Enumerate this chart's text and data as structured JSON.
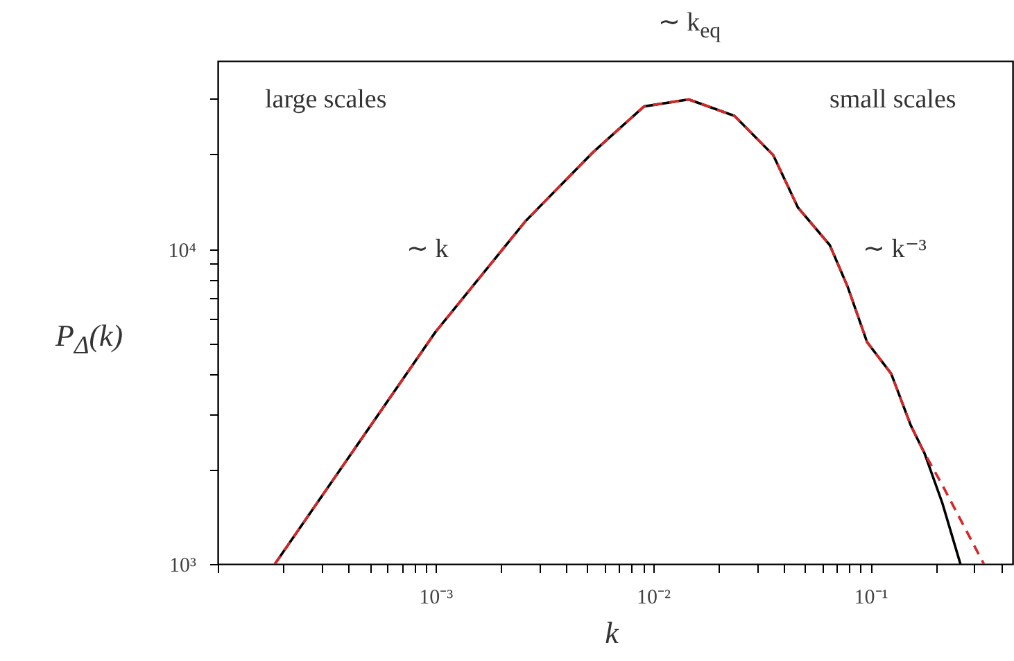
{
  "chart_data": {
    "type": "line",
    "xlabel": "k",
    "ylabel": "P$_{Δ}$(k)",
    "log": "xy",
    "grid": false,
    "xlim": [
      0.0001,
      0.45
    ],
    "ylim": [
      1000,
      39600
    ],
    "xticks": [
      {
        "value": 0.0001,
        "label": null
      },
      {
        "value": 0.0002,
        "label": null
      },
      {
        "value": 0.0003,
        "label": null
      },
      {
        "value": 0.0004,
        "label": null
      },
      {
        "value": 0.0005,
        "label": null
      },
      {
        "value": 0.0006,
        "label": null
      },
      {
        "value": 0.0007,
        "label": null
      },
      {
        "value": 0.0008,
        "label": null
      },
      {
        "value": 0.0009,
        "label": null
      },
      {
        "value": 0.001,
        "label": "10⁻³"
      },
      {
        "value": 0.002,
        "label": null
      },
      {
        "value": 0.003,
        "label": null
      },
      {
        "value": 0.004,
        "label": null
      },
      {
        "value": 0.005,
        "label": null
      },
      {
        "value": 0.006,
        "label": null
      },
      {
        "value": 0.007,
        "label": null
      },
      {
        "value": 0.008,
        "label": null
      },
      {
        "value": 0.009,
        "label": null
      },
      {
        "value": 0.01,
        "label": "10⁻²"
      },
      {
        "value": 0.02,
        "label": null
      },
      {
        "value": 0.03,
        "label": null
      },
      {
        "value": 0.04,
        "label": null
      },
      {
        "value": 0.05,
        "label": null
      },
      {
        "value": 0.06,
        "label": null
      },
      {
        "value": 0.07,
        "label": null
      },
      {
        "value": 0.08,
        "label": null
      },
      {
        "value": 0.09,
        "label": null
      },
      {
        "value": 0.1,
        "label": "10⁻¹"
      },
      {
        "value": 0.2,
        "label": null
      },
      {
        "value": 0.3,
        "label": null
      },
      {
        "value": 0.4,
        "label": null
      }
    ],
    "yticks": [
      {
        "value": 1000,
        "label": "10³"
      },
      {
        "value": 2000,
        "label": null
      },
      {
        "value": 3000,
        "label": null
      },
      {
        "value": 4000,
        "label": null
      },
      {
        "value": 5000,
        "label": null
      },
      {
        "value": 6000,
        "label": null
      },
      {
        "value": 7000,
        "label": null
      },
      {
        "value": 8000,
        "label": null
      },
      {
        "value": 9000,
        "label": null
      },
      {
        "value": 10000,
        "label": "10⁴"
      },
      {
        "value": 20000,
        "label": null
      },
      {
        "value": 30000,
        "label": null
      }
    ],
    "annotations": [
      "large scales",
      "small scales",
      "∼ k",
      "∼ k⁻³",
      "∼ k$_{eq}$"
    ],
    "series": [
      {
        "color": "#000000",
        "line_style": "solid",
        "x": [
          0.000183,
          0.001,
          0.00259,
          0.0053,
          0.0091,
          0.0146,
          0.0237,
          0.0357,
          0.0464,
          0.065,
          0.0785,
          0.0964,
          0.1245,
          0.153,
          0.177,
          0.214,
          0.259
        ],
        "values": [
          1000,
          5450,
          12250,
          20300,
          28400,
          29900,
          26500,
          19900,
          13560,
          10300,
          7600,
          5070,
          4020,
          2760,
          2250,
          1560,
          1000
        ]
      },
      {
        "color": "#d62728",
        "line_style": "dashed",
        "x": [
          0.000183,
          0.001,
          0.00259,
          0.0053,
          0.0091,
          0.0146,
          0.0237,
          0.0357,
          0.0464,
          0.065,
          0.0785,
          0.0964,
          0.1245,
          0.153,
          0.177,
          0.214,
          0.332
        ],
        "values": [
          1000,
          5450,
          12250,
          20300,
          28400,
          29900,
          26500,
          19900,
          13560,
          10300,
          7600,
          5070,
          4020,
          2760,
          2250,
          1780,
          1000
        ]
      }
    ]
  }
}
